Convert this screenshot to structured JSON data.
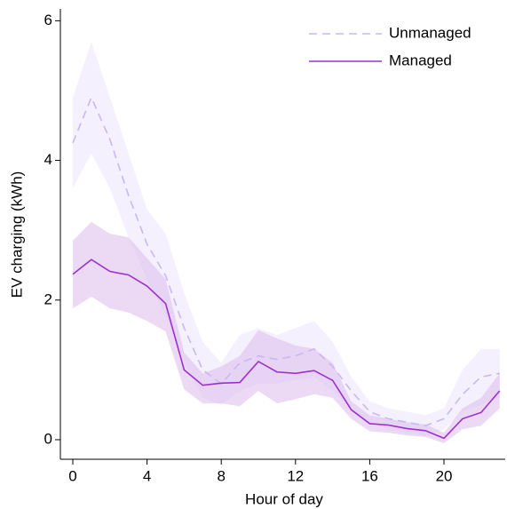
{
  "chart_data": {
    "type": "line",
    "x_label": "Hour of day",
    "y_label": "EV charging (kWh)",
    "x": [
      0,
      1,
      2,
      3,
      4,
      5,
      6,
      7,
      8,
      9,
      10,
      11,
      12,
      13,
      14,
      15,
      16,
      17,
      18,
      19,
      20,
      21,
      22,
      23
    ],
    "xlim": [
      -0.67,
      23.3
    ],
    "xticks": [
      0,
      4,
      8,
      12,
      16,
      20
    ],
    "ylim": [
      -0.28,
      6.17
    ],
    "yticks": [
      0,
      2,
      4,
      6
    ],
    "legend": "upper right",
    "series": [
      {
        "name": "Unmanaged",
        "color": "#c9b8f0",
        "band_color": "#ebe4fc",
        "dash": true,
        "values": [
          4.25,
          4.9,
          4.3,
          3.5,
          2.8,
          2.35,
          1.6,
          1.0,
          0.8,
          1.1,
          1.2,
          1.15,
          1.2,
          1.3,
          1.05,
          0.7,
          0.4,
          0.3,
          0.25,
          0.2,
          0.3,
          0.65,
          0.9,
          0.95
        ],
        "lower": [
          3.6,
          4.1,
          3.6,
          2.9,
          2.3,
          1.8,
          1.1,
          0.6,
          0.5,
          0.7,
          0.8,
          0.8,
          0.85,
          0.9,
          0.7,
          0.45,
          0.25,
          0.15,
          0.1,
          0.05,
          0.15,
          0.4,
          0.5,
          0.6
        ],
        "upper": [
          4.9,
          5.7,
          4.9,
          4.1,
          3.3,
          2.95,
          2.1,
          1.4,
          1.1,
          1.5,
          1.6,
          1.5,
          1.6,
          1.7,
          1.4,
          0.9,
          0.55,
          0.45,
          0.4,
          0.35,
          0.45,
          1.0,
          1.3,
          1.3
        ]
      },
      {
        "name": "Managed",
        "color": "#9b30d0",
        "band_color": "#dcbcec",
        "dash": false,
        "values": [
          2.37,
          2.58,
          2.41,
          2.36,
          2.2,
          1.95,
          1.0,
          0.78,
          0.81,
          0.82,
          1.12,
          0.97,
          0.95,
          0.99,
          0.85,
          0.43,
          0.23,
          0.21,
          0.16,
          0.13,
          0.02,
          0.3,
          0.39,
          0.7
        ],
        "lower": [
          1.88,
          2.05,
          1.88,
          1.82,
          1.7,
          1.55,
          0.72,
          0.52,
          0.52,
          0.48,
          0.7,
          0.52,
          0.58,
          0.65,
          0.6,
          0.3,
          0.12,
          0.1,
          0.06,
          0.04,
          -0.05,
          0.15,
          0.2,
          0.45
        ],
        "upper": [
          2.85,
          3.12,
          2.95,
          2.9,
          2.6,
          2.3,
          1.25,
          0.95,
          1.05,
          1.2,
          1.57,
          1.45,
          1.35,
          1.3,
          1.1,
          0.55,
          0.35,
          0.3,
          0.25,
          0.22,
          0.1,
          0.45,
          0.6,
          0.95
        ]
      }
    ]
  }
}
